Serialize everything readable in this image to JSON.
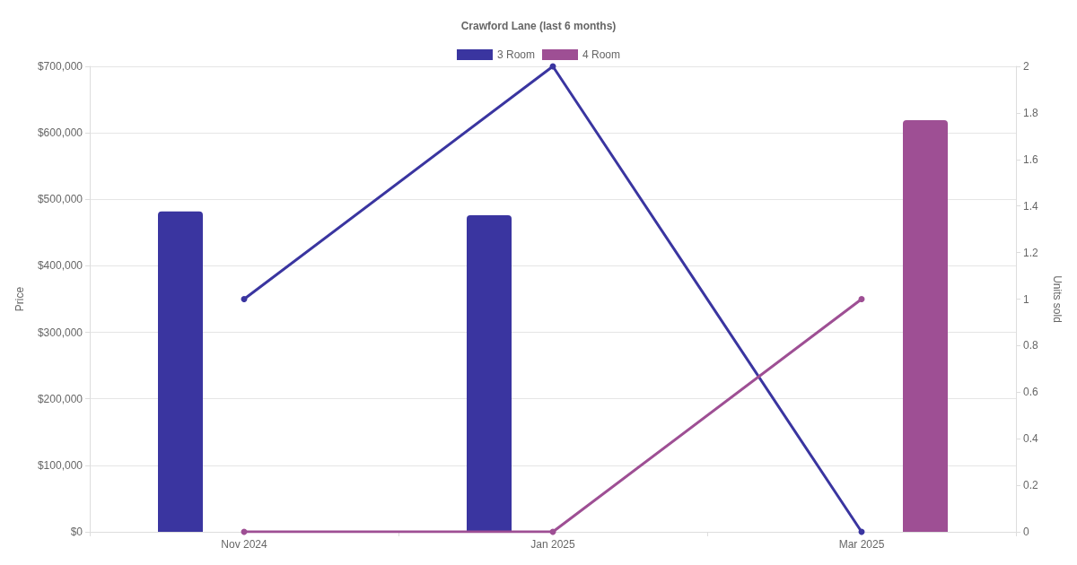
{
  "chart_data": {
    "type": "bar",
    "title": "Crawford Lane (last 6 months)",
    "ylabel": "Price",
    "y2label": "Units sold",
    "categories": [
      "Nov 2024",
      "Jan 2025",
      "Mar 2025"
    ],
    "series": [
      {
        "name": "3 Room",
        "color": "#3a35a0",
        "values": [
          482000,
          476000,
          null
        ]
      },
      {
        "name": "4 Room",
        "color": "#9e4f94",
        "values": [
          null,
          null,
          619000
        ]
      },
      {
        "type": "line",
        "axis": "y2",
        "color": "#3a35a0",
        "values": [
          1,
          2,
          0
        ]
      },
      {
        "type": "line",
        "axis": "y2",
        "color": "#9e4f94",
        "values": [
          0,
          0,
          1
        ]
      }
    ],
    "ylim": [
      0,
      700000
    ],
    "yticks": [
      {
        "value": 0,
        "label": "$0"
      },
      {
        "value": 100000,
        "label": "$100,000"
      },
      {
        "value": 200000,
        "label": "$200,000"
      },
      {
        "value": 300000,
        "label": "$300,000"
      },
      {
        "value": 400000,
        "label": "$400,000"
      },
      {
        "value": 500000,
        "label": "$500,000"
      },
      {
        "value": 600000,
        "label": "$600,000"
      },
      {
        "value": 700000,
        "label": "$700,000"
      }
    ],
    "y2lim": [
      0,
      2
    ],
    "y2ticks": [
      0,
      0.2,
      0.4,
      0.6,
      0.8,
      1,
      1.2,
      1.4,
      1.6,
      1.8,
      2
    ],
    "grid": "y",
    "legend": "top",
    "marker": "circle",
    "line_style": "solid"
  }
}
